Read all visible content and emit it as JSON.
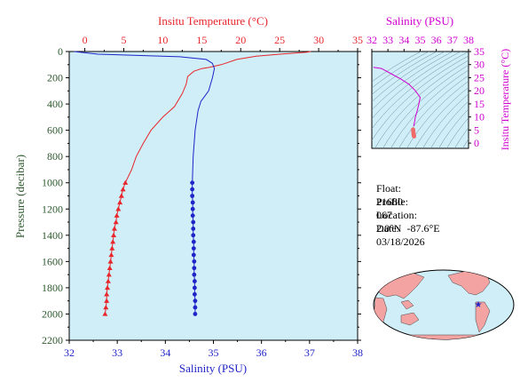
{
  "colors": {
    "temperature": "#e8262b",
    "salinity": "#1f24c8",
    "pressure_axis": "#2f5a2f",
    "ts_axis": "#d000d0",
    "plot_bg": "#cfeef8",
    "map_land": "#f4a3a3"
  },
  "chart_data": [
    {
      "type": "line",
      "yaxis": {
        "label": "Pressure (decibar)",
        "range": [
          2200,
          0
        ],
        "ticks": [
          0,
          200,
          400,
          600,
          800,
          1000,
          1200,
          1400,
          1600,
          1800,
          2000,
          2200
        ]
      },
      "xaxis_top": {
        "label": "Insitu Temperature (°C)",
        "range": [
          -2,
          35
        ],
        "ticks": [
          0,
          5,
          10,
          15,
          20,
          25,
          30,
          35
        ]
      },
      "xaxis_bottom": {
        "label": "Salinity (PSU)",
        "range": [
          32,
          38
        ],
        "ticks": [
          32,
          33,
          34,
          35,
          36,
          37,
          38
        ]
      },
      "grid": false,
      "series": [
        {
          "axis": "temperature",
          "markers_from_pressure": 1000,
          "points": [
            [
              29.0,
              0
            ],
            [
              28.5,
              5
            ],
            [
              25.0,
              20
            ],
            [
              22.0,
              35
            ],
            [
              19.5,
              60
            ],
            [
              17.5,
              100
            ],
            [
              16.0,
              120
            ],
            [
              15.0,
              130
            ],
            [
              14.0,
              150
            ],
            [
              13.2,
              190
            ],
            [
              13.0,
              250
            ],
            [
              12.5,
              320
            ],
            [
              11.5,
              420
            ],
            [
              10.0,
              500
            ],
            [
              8.5,
              600
            ],
            [
              7.5,
              700
            ],
            [
              6.6,
              800
            ],
            [
              6.0,
              900
            ],
            [
              5.2,
              1000
            ],
            [
              4.9,
              1050
            ],
            [
              4.7,
              1100
            ],
            [
              4.5,
              1150
            ],
            [
              4.3,
              1200
            ],
            [
              4.1,
              1250
            ],
            [
              4.0,
              1300
            ],
            [
              3.8,
              1350
            ],
            [
              3.7,
              1400
            ],
            [
              3.6,
              1450
            ],
            [
              3.5,
              1500
            ],
            [
              3.4,
              1550
            ],
            [
              3.3,
              1600
            ],
            [
              3.2,
              1650
            ],
            [
              3.1,
              1700
            ],
            [
              3.0,
              1750
            ],
            [
              2.9,
              1800
            ],
            [
              2.8,
              1850
            ],
            [
              2.8,
              1900
            ],
            [
              2.7,
              1950
            ],
            [
              2.6,
              2000
            ]
          ]
        },
        {
          "axis": "salinity",
          "markers_from_pressure": 1000,
          "points": [
            [
              32.1,
              0
            ],
            [
              32.6,
              20
            ],
            [
              34.3,
              40
            ],
            [
              34.85,
              60
            ],
            [
              34.98,
              90
            ],
            [
              35.02,
              130
            ],
            [
              34.98,
              200
            ],
            [
              34.9,
              300
            ],
            [
              34.8,
              350
            ],
            [
              34.74,
              380
            ],
            [
              34.68,
              450
            ],
            [
              34.62,
              600
            ],
            [
              34.58,
              800
            ],
            [
              34.56,
              1000
            ],
            [
              34.56,
              1050
            ],
            [
              34.56,
              1100
            ],
            [
              34.57,
              1150
            ],
            [
              34.57,
              1200
            ],
            [
              34.57,
              1250
            ],
            [
              34.58,
              1300
            ],
            [
              34.58,
              1350
            ],
            [
              34.58,
              1400
            ],
            [
              34.59,
              1450
            ],
            [
              34.59,
              1500
            ],
            [
              34.59,
              1550
            ],
            [
              34.6,
              1600
            ],
            [
              34.6,
              1650
            ],
            [
              34.6,
              1700
            ],
            [
              34.61,
              1750
            ],
            [
              34.61,
              1800
            ],
            [
              34.61,
              1850
            ],
            [
              34.62,
              1900
            ],
            [
              34.62,
              1950
            ],
            [
              34.62,
              2000
            ]
          ]
        }
      ]
    },
    {
      "type": "scatter",
      "xaxis_top": {
        "label": "Salinity (PSU)",
        "range": [
          32,
          38
        ],
        "ticks": [
          32,
          33,
          34,
          35,
          36,
          37,
          38
        ]
      },
      "yaxis_right": {
        "label": "Insitu Temperature (°C)",
        "range": [
          -2,
          35
        ],
        "ticks": [
          0,
          5,
          10,
          15,
          20,
          25,
          30,
          35
        ]
      },
      "grid": false,
      "curve": [
        [
          32.1,
          29.0
        ],
        [
          32.6,
          28.5
        ],
        [
          33.2,
          26.5
        ],
        [
          33.8,
          24.5
        ],
        [
          34.3,
          22.5
        ],
        [
          34.7,
          20.0
        ],
        [
          35.0,
          17.5
        ],
        [
          34.9,
          14.5
        ],
        [
          34.8,
          12.0
        ],
        [
          34.7,
          10.0
        ],
        [
          34.65,
          8.0
        ],
        [
          34.6,
          6.5
        ]
      ],
      "markers": [
        [
          34.56,
          5.2
        ],
        [
          34.57,
          4.6
        ],
        [
          34.58,
          4.0
        ],
        [
          34.59,
          3.5
        ],
        [
          34.6,
          3.1
        ],
        [
          34.61,
          2.8
        ],
        [
          34.62,
          2.6
        ]
      ]
    }
  ],
  "info": [
    {
      "key": "Float:",
      "value": "21680"
    },
    {
      "key": "Profile:",
      "value": "067"
    },
    {
      "key": "Location:",
      "value": "2.0°N  -87.6°E"
    },
    {
      "key": "Date:",
      "value": "03/18/2026"
    }
  ]
}
